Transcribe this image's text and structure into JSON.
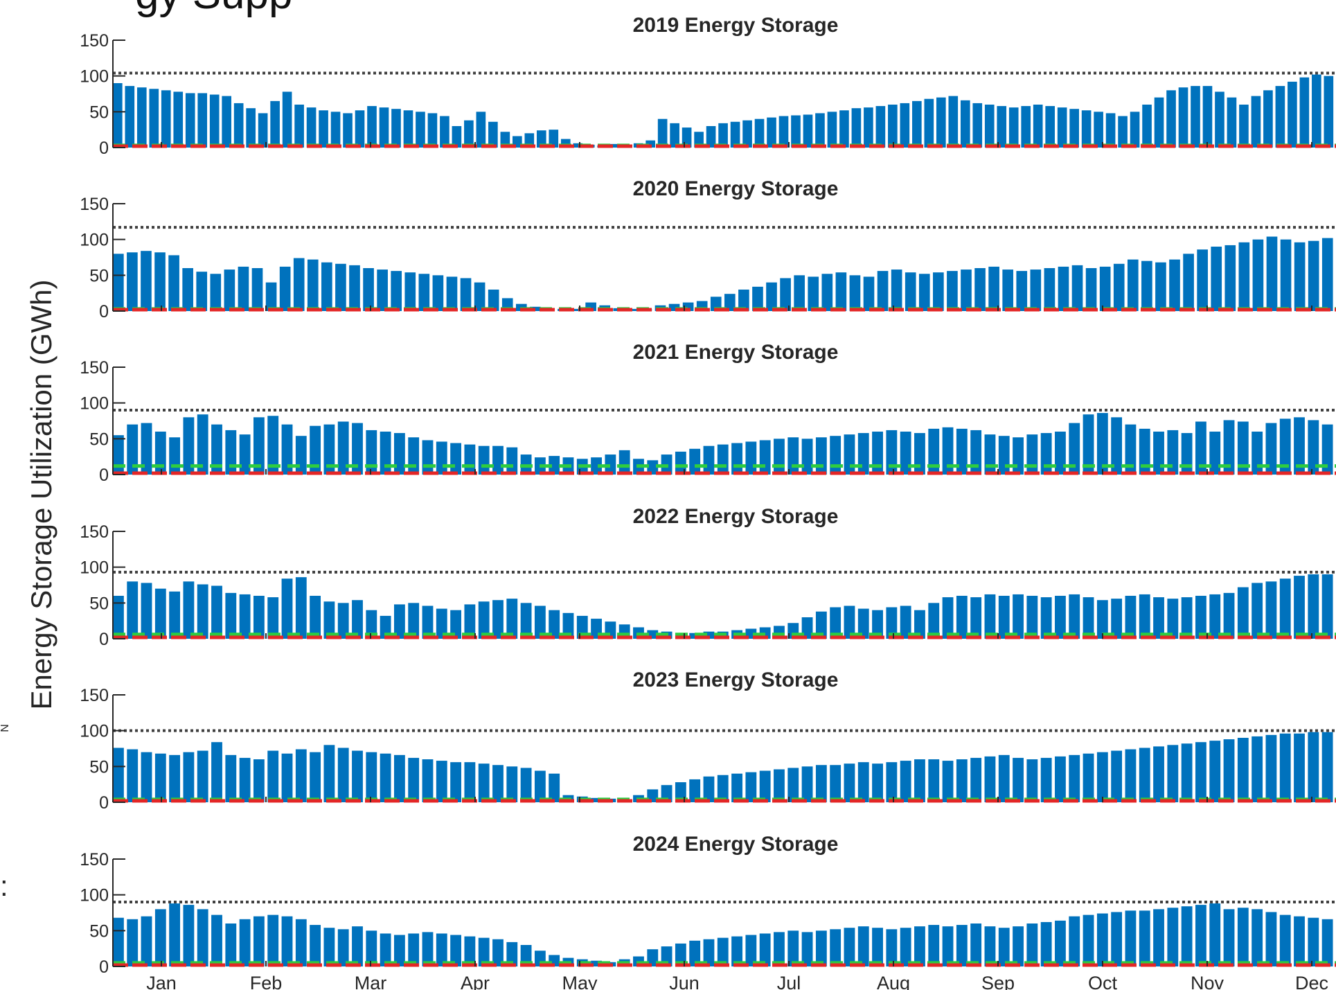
{
  "page": {
    "heading_fragment": "gy Supp",
    "side_glyph_small": "N",
    "side_glyph_colon": ":",
    "ylabel": "Energy Storage Utilization (GWh)"
  },
  "colors": {
    "storage": "#0072BD",
    "capacity_line": "#404040",
    "green_marker": "#2ecc40",
    "red_baseline": "#e32626",
    "axis": "#262626"
  },
  "chart_data": [
    {
      "type": "bar",
      "title": "2019 Energy Storage",
      "ylim": [
        0,
        150
      ],
      "yticks": [
        0,
        50,
        100,
        150
      ],
      "xticks": [
        "Jan",
        "Feb",
        "Mar",
        "Apr",
        "May",
        "Jun",
        "Jul",
        "Aug",
        "Sep",
        "Oct",
        "Nov",
        "Dec"
      ],
      "capacity": 104,
      "green_level": 3,
      "series": [
        {
          "values": [
            90,
            86,
            84,
            82,
            80,
            78,
            76,
            76,
            74,
            72,
            62,
            55,
            48,
            65,
            78,
            60,
            56,
            52,
            50,
            48,
            52,
            58,
            56,
            54,
            52,
            50,
            48,
            44,
            30,
            38,
            50,
            36,
            22,
            16,
            20,
            24,
            25,
            12,
            6,
            4,
            3,
            5,
            4,
            6,
            10,
            40,
            34,
            28,
            22,
            30,
            34,
            36,
            38,
            40,
            42,
            44,
            45,
            46,
            48,
            50,
            52,
            55,
            56,
            58,
            60,
            62,
            65,
            68,
            70,
            72,
            66,
            62,
            60,
            58,
            56,
            58,
            60,
            58,
            56,
            54,
            52,
            50,
            48,
            44,
            50,
            60,
            70,
            80,
            84,
            86,
            86,
            78,
            70,
            60,
            72,
            80,
            86,
            92,
            98,
            102,
            100
          ]
        }
      ]
    },
    {
      "type": "bar",
      "title": "2020 Energy Storage",
      "ylim": [
        0,
        150
      ],
      "yticks": [
        0,
        50,
        100,
        150
      ],
      "xticks": [
        "Jan",
        "Feb",
        "Mar",
        "Apr",
        "May",
        "Jun",
        "Jul",
        "Aug",
        "Sep",
        "Oct",
        "Nov",
        "Dec"
      ],
      "capacity": 117,
      "green_level": 3,
      "series": [
        {
          "values": [
            80,
            82,
            84,
            82,
            78,
            60,
            55,
            52,
            58,
            62,
            60,
            40,
            62,
            74,
            72,
            68,
            66,
            64,
            60,
            58,
            56,
            54,
            52,
            50,
            48,
            46,
            40,
            30,
            18,
            10,
            6,
            4,
            3,
            3,
            12,
            8,
            4,
            3,
            3,
            8,
            10,
            12,
            14,
            20,
            24,
            30,
            34,
            40,
            46,
            50,
            48,
            52,
            54,
            50,
            48,
            56,
            58,
            54,
            52,
            54,
            56,
            58,
            60,
            62,
            58,
            56,
            58,
            60,
            62,
            64,
            60,
            62,
            66,
            72,
            70,
            68,
            72,
            80,
            86,
            90,
            92,
            96,
            100,
            104,
            100,
            96,
            98,
            102
          ]
        }
      ]
    },
    {
      "type": "bar",
      "title": "2021 Energy Storage",
      "ylim": [
        0,
        150
      ],
      "yticks": [
        0,
        50,
        100,
        150
      ],
      "xticks": [
        "Jan",
        "Feb",
        "Mar",
        "Apr",
        "May",
        "Jun",
        "Jul",
        "Aug",
        "Sep",
        "Oct",
        "Nov",
        "Dec"
      ],
      "capacity": 90,
      "green_level": 12,
      "series": [
        {
          "values": [
            55,
            70,
            72,
            60,
            52,
            80,
            84,
            70,
            62,
            56,
            80,
            82,
            70,
            54,
            68,
            70,
            74,
            72,
            62,
            60,
            58,
            52,
            48,
            46,
            44,
            42,
            40,
            40,
            38,
            28,
            24,
            26,
            24,
            22,
            24,
            28,
            34,
            22,
            20,
            28,
            32,
            36,
            40,
            42,
            44,
            46,
            48,
            50,
            52,
            50,
            52,
            54,
            56,
            58,
            60,
            62,
            60,
            58,
            64,
            66,
            64,
            62,
            56,
            54,
            52,
            56,
            58,
            60,
            72,
            84,
            86,
            80,
            70,
            64,
            60,
            62,
            58,
            74,
            60,
            76,
            74,
            60,
            72,
            78,
            80,
            76,
            70
          ]
        }
      ]
    },
    {
      "type": "bar",
      "title": "2022 Energy Storage",
      "ylim": [
        0,
        150
      ],
      "yticks": [
        0,
        50,
        100,
        150
      ],
      "xticks": [
        "Jan",
        "Feb",
        "Mar",
        "Apr",
        "May",
        "Jun",
        "Jul",
        "Aug",
        "Sep",
        "Oct",
        "Nov",
        "Dec"
      ],
      "capacity": 93,
      "green_level": 6,
      "series": [
        {
          "values": [
            60,
            80,
            78,
            70,
            66,
            80,
            76,
            74,
            64,
            62,
            60,
            58,
            84,
            86,
            60,
            52,
            50,
            54,
            40,
            32,
            48,
            50,
            46,
            42,
            40,
            48,
            52,
            54,
            56,
            50,
            46,
            40,
            36,
            32,
            28,
            24,
            20,
            16,
            12,
            10,
            8,
            8,
            10,
            10,
            12,
            14,
            16,
            18,
            22,
            30,
            38,
            44,
            46,
            42,
            40,
            44,
            46,
            40,
            50,
            58,
            60,
            58,
            62,
            60,
            62,
            60,
            58,
            60,
            62,
            58,
            54,
            56,
            60,
            62,
            58,
            56,
            58,
            60,
            62,
            64,
            72,
            78,
            80,
            84,
            88,
            90,
            90
          ]
        }
      ]
    },
    {
      "type": "bar",
      "title": "2023 Energy Storage",
      "ylim": [
        0,
        150
      ],
      "yticks": [
        0,
        50,
        100,
        150
      ],
      "xticks": [
        "Jan",
        "Feb",
        "Mar",
        "Apr",
        "May",
        "Jun",
        "Jul",
        "Aug",
        "Sep",
        "Oct",
        "Nov",
        "Dec"
      ],
      "capacity": 100,
      "green_level": 4,
      "series": [
        {
          "values": [
            76,
            74,
            70,
            68,
            66,
            70,
            72,
            84,
            66,
            62,
            60,
            72,
            68,
            74,
            70,
            80,
            76,
            72,
            70,
            68,
            66,
            62,
            60,
            58,
            56,
            56,
            54,
            52,
            50,
            48,
            44,
            40,
            10,
            8,
            6,
            5,
            4,
            10,
            18,
            24,
            28,
            32,
            36,
            38,
            40,
            42,
            44,
            46,
            48,
            50,
            52,
            52,
            54,
            56,
            54,
            56,
            58,
            60,
            60,
            58,
            60,
            62,
            64,
            66,
            62,
            60,
            62,
            64,
            66,
            68,
            70,
            72,
            74,
            76,
            78,
            80,
            82,
            84,
            86,
            88,
            90,
            92,
            94,
            96,
            96,
            98,
            98
          ]
        }
      ]
    },
    {
      "type": "bar",
      "title": "2024 Energy Storage",
      "ylim": [
        0,
        150
      ],
      "yticks": [
        0,
        50,
        100,
        150
      ],
      "xticks": [
        "Jan",
        "Feb",
        "Mar",
        "Apr",
        "May",
        "Jun",
        "Jul",
        "Aug",
        "Sep",
        "Oct",
        "Nov",
        "Dec"
      ],
      "capacity": 90,
      "green_level": 5,
      "series": [
        {
          "values": [
            68,
            66,
            70,
            80,
            88,
            86,
            80,
            72,
            60,
            66,
            70,
            72,
            70,
            66,
            58,
            54,
            52,
            56,
            50,
            46,
            44,
            46,
            48,
            46,
            44,
            42,
            40,
            38,
            34,
            30,
            22,
            16,
            12,
            10,
            8,
            6,
            10,
            14,
            24,
            28,
            32,
            36,
            38,
            40,
            42,
            44,
            46,
            48,
            50,
            48,
            50,
            52,
            54,
            56,
            54,
            52,
            54,
            56,
            58,
            56,
            58,
            60,
            56,
            54,
            56,
            60,
            62,
            64,
            70,
            72,
            74,
            76,
            78,
            78,
            80,
            82,
            84,
            86,
            88,
            80,
            82,
            80,
            76,
            72,
            70,
            68,
            66
          ]
        }
      ]
    }
  ]
}
